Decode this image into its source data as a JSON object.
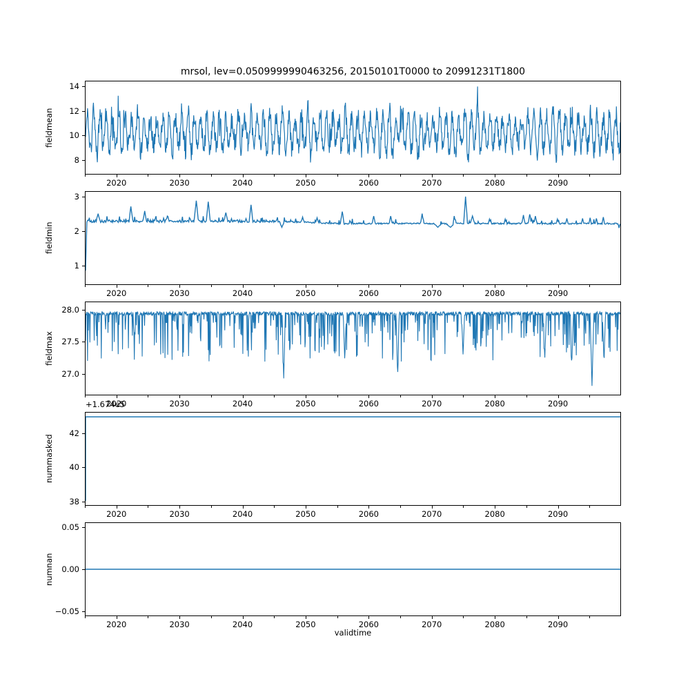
{
  "figure": {
    "title": "mrsol, lev=0.0509999990463256, 20150101T0000 to 20991231T1800",
    "xlabel": "validtime",
    "offset_text": "+1.674e5",
    "background": "#ffffff",
    "line_color": "#1f77b4",
    "axis_color": "#000000"
  },
  "x_axis": {
    "label": "validtime",
    "min": 2015,
    "max": 2100,
    "major_ticks": [
      2020,
      2030,
      2040,
      2050,
      2060,
      2070,
      2080,
      2090
    ],
    "major_tick_labels": [
      "2020",
      "2030",
      "2040",
      "2050",
      "2060",
      "2070",
      "2080",
      "2090"
    ],
    "minor_ticks": [
      2015,
      2025,
      2035,
      2045,
      2055,
      2065,
      2075,
      2085,
      2095
    ]
  },
  "chart_data": [
    {
      "type": "line",
      "name": "fieldmean",
      "ylabel": "fieldmean",
      "ylim": [
        6.82,
        14.46
      ],
      "yticks": [
        8,
        10,
        12,
        14
      ],
      "ytick_labels": [
        "8",
        "10",
        "12",
        "14"
      ],
      "legend": "none",
      "grid": false,
      "summary": {
        "pattern": "dense annual-cycle oscillation with noise",
        "mean": 10.3,
        "min": 7.3,
        "max": 14.05
      },
      "gen": {
        "kind": "seasonal_noise",
        "seed": 11,
        "points_per_year": 16,
        "base": 10.25,
        "season_amp": 1.25,
        "amp_var": 0.45,
        "noise": 0.8,
        "phase": -0.3,
        "clip": [
          7.25,
          14.05
        ]
      },
      "stroke_width": 1.2
    },
    {
      "type": "line",
      "name": "fieldmin",
      "ylabel": "fieldmin",
      "ylim": [
        0.45,
        3.16
      ],
      "yticks": [
        1,
        2,
        3
      ],
      "ytick_labels": [
        "1",
        "2",
        "3"
      ],
      "grid": false,
      "summary": {
        "pattern": "starts at 0.85, jumps to ~2.3 plateau, occasional spikes, flatter ~2.22 after 2045",
        "start": 0.85,
        "plateau_early": 2.3,
        "plateau_late": 2.23,
        "max_spike": 3.02
      },
      "gen": {
        "kind": "level_spikes",
        "seed": 5,
        "points_per_year": 10,
        "base_start": 2.3,
        "base_end": 2.23,
        "noise": 0.04,
        "events": [
          {
            "t": 2015.0,
            "v": 0.85,
            "w": 0.2
          },
          {
            "t": 2017.0,
            "v": 2.52,
            "w": 0.3
          },
          {
            "t": 2022.2,
            "v": 2.73,
            "w": 0.3
          },
          {
            "t": 2024.4,
            "v": 2.6,
            "w": 0.3
          },
          {
            "t": 2028.0,
            "v": 2.45,
            "w": 0.25
          },
          {
            "t": 2032.6,
            "v": 2.9,
            "w": 0.35
          },
          {
            "t": 2034.5,
            "v": 2.87,
            "w": 0.3
          },
          {
            "t": 2037.3,
            "v": 2.55,
            "w": 0.3
          },
          {
            "t": 2041.3,
            "v": 2.78,
            "w": 0.3
          },
          {
            "t": 2046.2,
            "v": 2.12,
            "w": 0.4
          },
          {
            "t": 2049.5,
            "v": 2.42,
            "w": 0.25
          },
          {
            "t": 2051.8,
            "v": 2.4,
            "w": 0.25
          },
          {
            "t": 2055.8,
            "v": 2.58,
            "w": 0.3
          },
          {
            "t": 2060.8,
            "v": 2.45,
            "w": 0.25
          },
          {
            "t": 2063.5,
            "v": 2.45,
            "w": 0.25
          },
          {
            "t": 2068.5,
            "v": 2.52,
            "w": 0.25
          },
          {
            "t": 2071.0,
            "v": 2.12,
            "w": 0.6
          },
          {
            "t": 2073.0,
            "v": 2.12,
            "w": 0.7
          },
          {
            "t": 2073.6,
            "v": 2.45,
            "w": 0.2
          },
          {
            "t": 2075.4,
            "v": 3.02,
            "w": 0.3
          },
          {
            "t": 2076.5,
            "v": 2.45,
            "w": 0.35
          },
          {
            "t": 2079.2,
            "v": 2.36,
            "w": 0.2
          },
          {
            "t": 2081.7,
            "v": 2.36,
            "w": 0.2
          },
          {
            "t": 2084.6,
            "v": 2.48,
            "w": 0.25
          },
          {
            "t": 2085.6,
            "v": 2.5,
            "w": 0.25
          },
          {
            "t": 2086.5,
            "v": 2.45,
            "w": 0.25
          },
          {
            "t": 2090.0,
            "v": 2.36,
            "w": 0.2
          },
          {
            "t": 2091.5,
            "v": 2.38,
            "w": 0.2
          },
          {
            "t": 2094.0,
            "v": 2.38,
            "w": 0.2
          },
          {
            "t": 2095.2,
            "v": 2.4,
            "w": 0.2
          },
          {
            "t": 2096.2,
            "v": 2.38,
            "w": 0.2
          },
          {
            "t": 2097.3,
            "v": 2.42,
            "w": 0.2
          },
          {
            "t": 2099.8,
            "v": 2.1,
            "w": 0.15
          }
        ]
      },
      "stroke_width": 1.4
    },
    {
      "type": "line",
      "name": "fieldmax",
      "ylabel": "fieldmax",
      "ylim": [
        26.66,
        28.13
      ],
      "yticks": [
        27.0,
        27.5,
        28.0
      ],
      "ytick_labels": [
        "27.0",
        "27.5",
        "28.0"
      ],
      "grid": false,
      "summary": {
        "pattern": "baseline ~27.95 with frequent downward spikes",
        "baseline": 27.95,
        "typical_spike_floor": 27.5,
        "deepest_spike": 26.8
      },
      "gen": {
        "kind": "down_spikes",
        "seed": 23,
        "points_per_year": 16,
        "base": 27.95,
        "noise": 0.03,
        "spike_prob": 0.18,
        "depth_min": 0.12,
        "depth_max": 0.75,
        "events": [
          {
            "t": 2046.5,
            "v": 26.92,
            "w": 0.25
          },
          {
            "t": 2056.2,
            "v": 27.2,
            "w": 0.25
          },
          {
            "t": 2064.6,
            "v": 26.95,
            "w": 0.25
          },
          {
            "t": 2075.0,
            "v": 27.3,
            "w": 0.25
          },
          {
            "t": 2088.0,
            "v": 27.25,
            "w": 0.25
          },
          {
            "t": 2092.3,
            "v": 27.2,
            "w": 0.25
          },
          {
            "t": 2095.5,
            "v": 26.8,
            "w": 0.3
          },
          {
            "t": 2097.4,
            "v": 27.2,
            "w": 0.25
          }
        ]
      },
      "stroke_width": 1.1
    },
    {
      "type": "line",
      "name": "nummasked",
      "ylabel": "nummasked",
      "ylim": [
        37.75,
        43.25
      ],
      "yticks": [
        38,
        40,
        42
      ],
      "ytick_labels": [
        "38",
        "40",
        "42"
      ],
      "offset_text": "+1.674e5",
      "grid": false,
      "summary": {
        "pattern": "constant line near top of axes",
        "constant_display_value": 43,
        "constant_actual_value": 167443,
        "first_point_display_value": 38
      },
      "gen": {
        "kind": "constant",
        "value": 43,
        "first_point": {
          "t": 2015.0,
          "v": 38
        }
      },
      "stroke_width": 1.5
    },
    {
      "type": "line",
      "name": "numnan",
      "ylabel": "numnan",
      "ylim": [
        -0.0555,
        0.0555
      ],
      "yticks": [
        -0.05,
        0.0,
        0.05
      ],
      "ytick_labels": [
        "−0.05",
        "0.00",
        "0.05"
      ],
      "grid": false,
      "summary": {
        "pattern": "constant zero line",
        "constant_value": 0
      },
      "gen": {
        "kind": "constant",
        "value": 0
      },
      "stroke_width": 1.5
    }
  ]
}
